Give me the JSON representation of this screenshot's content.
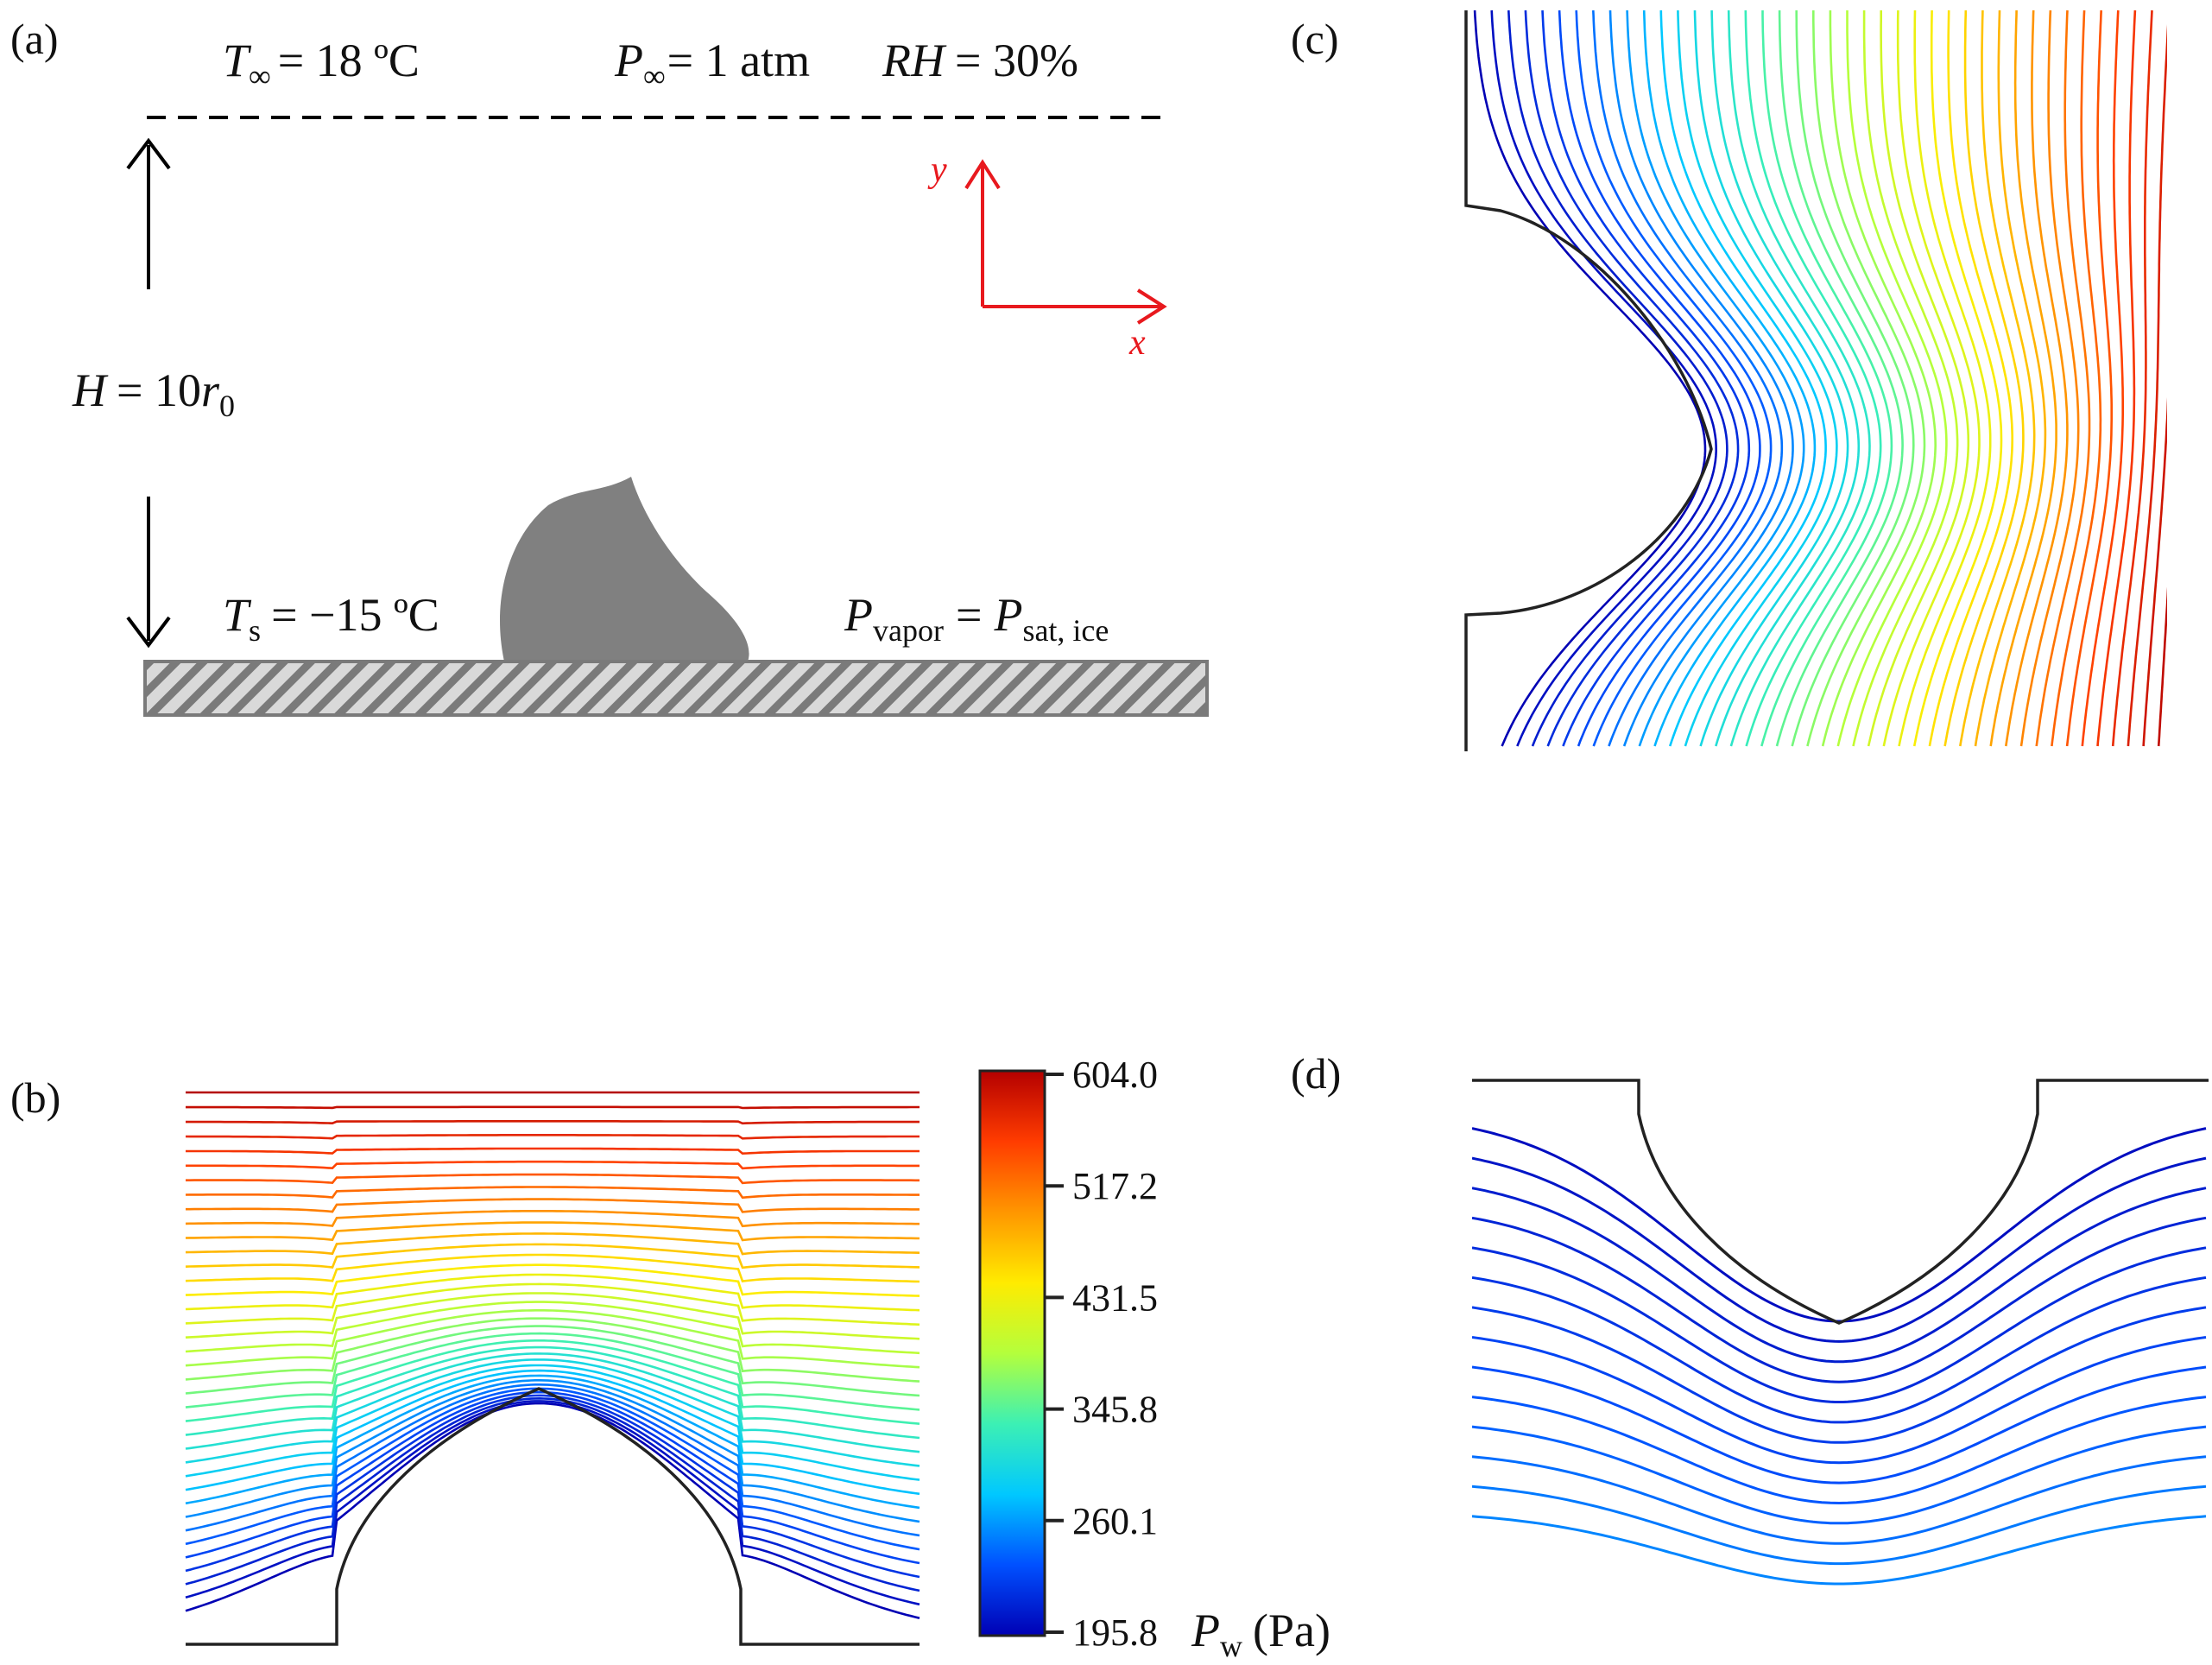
{
  "panels": {
    "a": "(a)",
    "b": "(b)",
    "c": "(c)",
    "d": "(d)"
  },
  "schematic": {
    "t_inf_sym": "T",
    "t_inf_sub": "∞",
    "t_inf_val": "= 18 ºC",
    "p_inf_sym": "P",
    "p_inf_sub": "∞",
    "p_inf_val": "= 1 atm",
    "rh_sym": "RH",
    "rh_val": "= 30%",
    "h_sym": "H",
    "h_val": "= 10",
    "h_r": "r",
    "h_r_sub": "0",
    "ts_sym": "T",
    "ts_sub": "s",
    "ts_val": "= −15 ºC",
    "pvap_sym": "P",
    "pvap_sub": "vapor",
    "pvap_eq": "=",
    "psat_sym": "P",
    "psat_sub": "sat, ice",
    "axis_x": "x",
    "axis_y": "y"
  },
  "colorbar": {
    "ticks": [
      "604.0",
      "517.2",
      "431.5",
      "345.8",
      "260.1",
      "195.8"
    ],
    "min": 195.8,
    "max": 604.0,
    "label_sym": "P",
    "label_sub": "w",
    "label_unit": "(Pa)",
    "colors": [
      "#0000b4",
      "#0050ff",
      "#00c8ff",
      "#3cf0b4",
      "#b4ff3c",
      "#ffeb00",
      "#ff9600",
      "#ff3c00",
      "#b40000"
    ]
  },
  "colors": {
    "axis_red": "#e8191e",
    "drop_gray": "#808080",
    "outline": "#000000"
  }
}
